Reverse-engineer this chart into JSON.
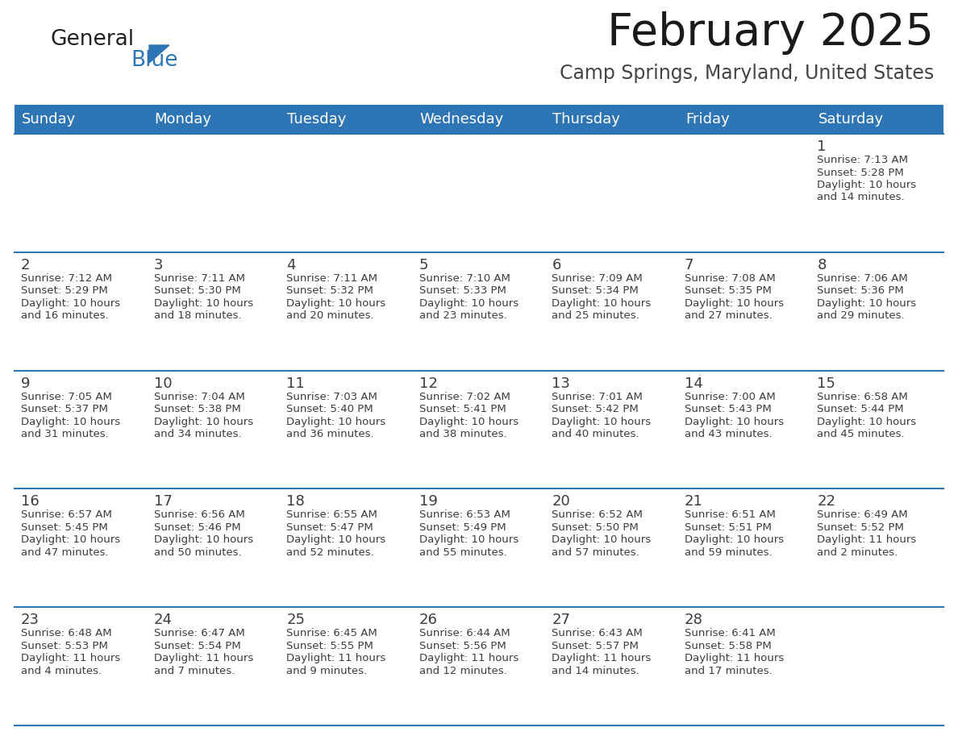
{
  "title": "February 2025",
  "subtitle": "Camp Springs, Maryland, United States",
  "header_bg": "#2E75B6",
  "header_text_color": "#FFFFFF",
  "cell_bg": "#FFFFFF",
  "border_color": "#2E75B6",
  "day_headers": [
    "Sunday",
    "Monday",
    "Tuesday",
    "Wednesday",
    "Thursday",
    "Friday",
    "Saturday"
  ],
  "text_color": "#3C3C3C",
  "title_color": "#1a1a1a",
  "subtitle_color": "#444444",
  "logo_general_color": "#222222",
  "logo_blue_color": "#2E75B6",
  "calendar_data": [
    [
      null,
      null,
      null,
      null,
      null,
      null,
      1
    ],
    [
      2,
      3,
      4,
      5,
      6,
      7,
      8
    ],
    [
      9,
      10,
      11,
      12,
      13,
      14,
      15
    ],
    [
      16,
      17,
      18,
      19,
      20,
      21,
      22
    ],
    [
      23,
      24,
      25,
      26,
      27,
      28,
      null
    ]
  ],
  "sunrise_data": {
    "1": "7:13 AM",
    "2": "7:12 AM",
    "3": "7:11 AM",
    "4": "7:11 AM",
    "5": "7:10 AM",
    "6": "7:09 AM",
    "7": "7:08 AM",
    "8": "7:06 AM",
    "9": "7:05 AM",
    "10": "7:04 AM",
    "11": "7:03 AM",
    "12": "7:02 AM",
    "13": "7:01 AM",
    "14": "7:00 AM",
    "15": "6:58 AM",
    "16": "6:57 AM",
    "17": "6:56 AM",
    "18": "6:55 AM",
    "19": "6:53 AM",
    "20": "6:52 AM",
    "21": "6:51 AM",
    "22": "6:49 AM",
    "23": "6:48 AM",
    "24": "6:47 AM",
    "25": "6:45 AM",
    "26": "6:44 AM",
    "27": "6:43 AM",
    "28": "6:41 AM"
  },
  "sunset_data": {
    "1": "5:28 PM",
    "2": "5:29 PM",
    "3": "5:30 PM",
    "4": "5:32 PM",
    "5": "5:33 PM",
    "6": "5:34 PM",
    "7": "5:35 PM",
    "8": "5:36 PM",
    "9": "5:37 PM",
    "10": "5:38 PM",
    "11": "5:40 PM",
    "12": "5:41 PM",
    "13": "5:42 PM",
    "14": "5:43 PM",
    "15": "5:44 PM",
    "16": "5:45 PM",
    "17": "5:46 PM",
    "18": "5:47 PM",
    "19": "5:49 PM",
    "20": "5:50 PM",
    "21": "5:51 PM",
    "22": "5:52 PM",
    "23": "5:53 PM",
    "24": "5:54 PM",
    "25": "5:55 PM",
    "26": "5:56 PM",
    "27": "5:57 PM",
    "28": "5:58 PM"
  },
  "daylight_line1": {
    "1": "10 hours",
    "2": "10 hours",
    "3": "10 hours",
    "4": "10 hours",
    "5": "10 hours",
    "6": "10 hours",
    "7": "10 hours",
    "8": "10 hours",
    "9": "10 hours",
    "10": "10 hours",
    "11": "10 hours",
    "12": "10 hours",
    "13": "10 hours",
    "14": "10 hours",
    "15": "10 hours",
    "16": "10 hours",
    "17": "10 hours",
    "18": "10 hours",
    "19": "10 hours",
    "20": "10 hours",
    "21": "10 hours",
    "22": "11 hours",
    "23": "11 hours",
    "24": "11 hours",
    "25": "11 hours",
    "26": "11 hours",
    "27": "11 hours",
    "28": "11 hours"
  },
  "daylight_line2": {
    "1": "and 14 minutes.",
    "2": "and 16 minutes.",
    "3": "and 18 minutes.",
    "4": "and 20 minutes.",
    "5": "and 23 minutes.",
    "6": "and 25 minutes.",
    "7": "and 27 minutes.",
    "8": "and 29 minutes.",
    "9": "and 31 minutes.",
    "10": "and 34 minutes.",
    "11": "and 36 minutes.",
    "12": "and 38 minutes.",
    "13": "and 40 minutes.",
    "14": "and 43 minutes.",
    "15": "and 45 minutes.",
    "16": "and 47 minutes.",
    "17": "and 50 minutes.",
    "18": "and 52 minutes.",
    "19": "and 55 minutes.",
    "20": "and 57 minutes.",
    "21": "and 59 minutes.",
    "22": "and 2 minutes.",
    "23": "and 4 minutes.",
    "24": "and 7 minutes.",
    "25": "and 9 minutes.",
    "26": "and 12 minutes.",
    "27": "and 14 minutes.",
    "28": "and 17 minutes."
  }
}
